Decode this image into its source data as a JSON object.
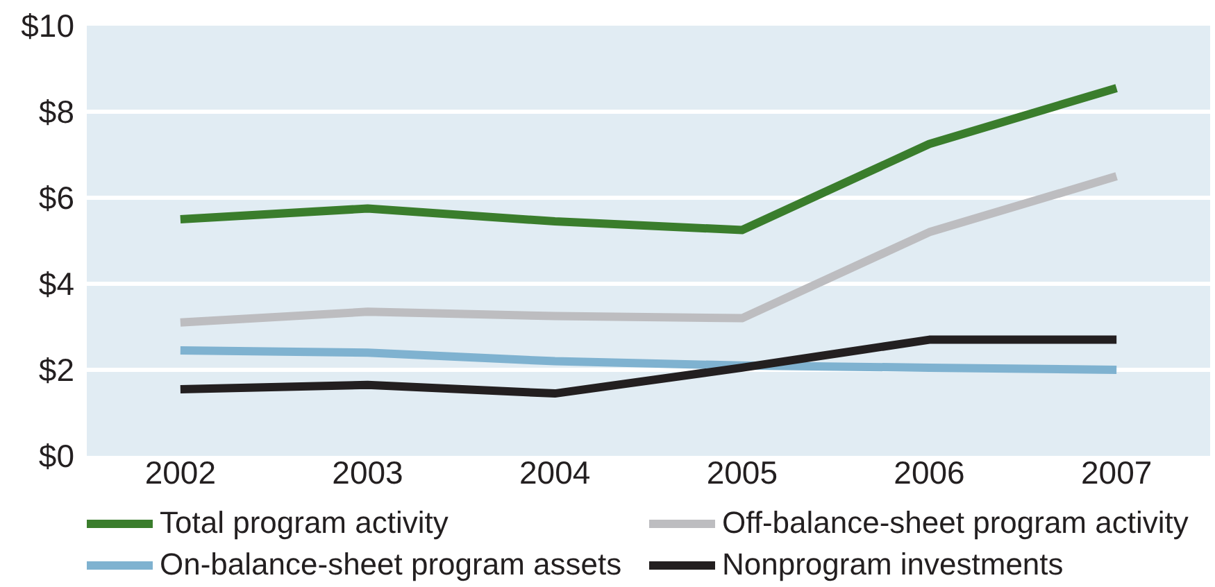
{
  "chart_data": {
    "type": "line",
    "categories": [
      "2002",
      "2003",
      "2004",
      "2005",
      "2006",
      "2007"
    ],
    "series": [
      {
        "name": "Total program activity",
        "color": "#3a7d2c",
        "values": [
          5.5,
          5.75,
          5.45,
          5.25,
          7.25,
          8.55
        ]
      },
      {
        "name": "On-balance-sheet program assets",
        "color": "#7fb2d0",
        "values": [
          2.45,
          2.4,
          2.2,
          2.1,
          2.05,
          2.0
        ]
      },
      {
        "name": "Off-balance-sheet program activity",
        "color": "#bdbdc0",
        "values": [
          3.1,
          3.35,
          3.25,
          3.2,
          5.2,
          6.5
        ]
      },
      {
        "name": "Nonprogram investments",
        "color": "#231f20",
        "values": [
          1.55,
          1.65,
          1.45,
          2.05,
          2.7,
          2.7
        ]
      }
    ],
    "ylim": [
      0,
      10
    ],
    "yticks": [
      {
        "value": 0,
        "label": "$0"
      },
      {
        "value": 2,
        "label": "$2"
      },
      {
        "value": 4,
        "label": "$4"
      },
      {
        "value": 6,
        "label": "$6"
      },
      {
        "value": 8,
        "label": "$8"
      },
      {
        "value": 10,
        "label": "$10"
      }
    ],
    "grid": "y",
    "legend": "bottom",
    "line_style": "solid"
  }
}
